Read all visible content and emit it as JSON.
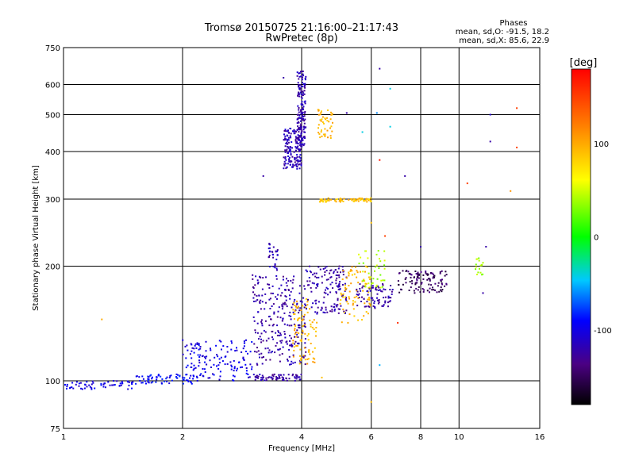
{
  "chart_data": {
    "type": "scatter",
    "title": "Tromsø 20150725 21:16:00–21:17:43",
    "subtitle": "RwPretec (8p)",
    "xlabel": "Frequency [MHz]",
    "ylabel": "Stationary phase Virtual Height [km]",
    "x_scale": "log",
    "y_scale": "log",
    "xlim": [
      1,
      16
    ],
    "ylim": [
      75,
      750
    ],
    "x_ticks": [
      1,
      2,
      4,
      6,
      8,
      10,
      16
    ],
    "x_grid": [
      1,
      2,
      4,
      6,
      8,
      10,
      16
    ],
    "y_ticks": [
      75,
      100,
      200,
      300,
      400,
      500,
      600,
      750
    ],
    "y_grid": [
      100,
      200,
      300,
      400,
      500,
      600
    ],
    "grid": true,
    "legend": {
      "title": "Phases",
      "line1": "mean, sd,O:  -91.5, 18.2",
      "line2": "mean, sd,X:  85.6, 22.9",
      "placement": "top-right"
    },
    "colorbar": {
      "label": "[deg]",
      "range": [
        -180,
        180
      ],
      "ticks": [
        100,
        0,
        -100
      ],
      "placement": "right"
    },
    "clusters": [
      {
        "x": [
          1.0,
          1.5
        ],
        "y": [
          95,
          100
        ],
        "phase": -100,
        "n": 60
      },
      {
        "x": [
          1.5,
          2.2
        ],
        "y": [
          98,
          104
        ],
        "phase": -92,
        "n": 70
      },
      {
        "x": [
          2.0,
          3.0
        ],
        "y": [
          100,
          128
        ],
        "phase": -100,
        "n": 140
      },
      {
        "x": [
          3.0,
          4.0
        ],
        "y": [
          100,
          104
        ],
        "phase": -125,
        "n": 70
      },
      {
        "x": [
          3.0,
          4.1
        ],
        "y": [
          110,
          190
        ],
        "phase": -125,
        "n": 260
      },
      {
        "x": [
          3.3,
          3.5
        ],
        "y": [
          195,
          230
        ],
        "phase": -120,
        "n": 30
      },
      {
        "x": [
          3.6,
          4.0
        ],
        "y": [
          360,
          460
        ],
        "phase": -120,
        "n": 160
      },
      {
        "x": [
          3.9,
          4.1
        ],
        "y": [
          410,
          650
        ],
        "phase": -122,
        "n": 160
      },
      {
        "x": [
          3.8,
          4.4
        ],
        "y": [
          110,
          165
        ],
        "phase": 95,
        "n": 90
      },
      {
        "x": [
          4.1,
          5.2
        ],
        "y": [
          150,
          200
        ],
        "phase": -125,
        "n": 140
      },
      {
        "x": [
          4.4,
          4.8
        ],
        "y": [
          430,
          520
        ],
        "phase": 95,
        "n": 45
      },
      {
        "x": [
          4.4,
          6.0
        ],
        "y": [
          295,
          302
        ],
        "phase": 90,
        "n": 70
      },
      {
        "x": [
          5.0,
          6.0
        ],
        "y": [
          140,
          200
        ],
        "phase": 95,
        "n": 80
      },
      {
        "x": [
          5.5,
          6.8
        ],
        "y": [
          155,
          180
        ],
        "phase": -125,
        "n": 80
      },
      {
        "x": [
          5.5,
          6.5
        ],
        "y": [
          175,
          220
        ],
        "phase": 40,
        "n": 40
      },
      {
        "x": [
          7.0,
          9.3
        ],
        "y": [
          170,
          195
        ],
        "phase": -150,
        "n": 110
      },
      {
        "x": [
          11.0,
          11.5
        ],
        "y": [
          190,
          210
        ],
        "phase": 40,
        "n": 18
      }
    ],
    "points": [
      {
        "x": 3.6,
        "y": 625,
        "phase": -125
      },
      {
        "x": 6.3,
        "y": 660,
        "phase": -125
      },
      {
        "x": 6.7,
        "y": 585,
        "phase": -40
      },
      {
        "x": 6.7,
        "y": 465,
        "phase": -40
      },
      {
        "x": 6.2,
        "y": 505,
        "phase": -60
      },
      {
        "x": 5.7,
        "y": 450,
        "phase": -40
      },
      {
        "x": 5.2,
        "y": 505,
        "phase": -125
      },
      {
        "x": 6.3,
        "y": 380,
        "phase": 170
      },
      {
        "x": 7.3,
        "y": 345,
        "phase": -125
      },
      {
        "x": 10.5,
        "y": 330,
        "phase": 150
      },
      {
        "x": 12.0,
        "y": 500,
        "phase": -110
      },
      {
        "x": 12.0,
        "y": 425,
        "phase": -125
      },
      {
        "x": 14.0,
        "y": 520,
        "phase": 150
      },
      {
        "x": 14.0,
        "y": 410,
        "phase": 150
      },
      {
        "x": 13.5,
        "y": 315,
        "phase": 110
      },
      {
        "x": 1.25,
        "y": 145,
        "phase": 100
      },
      {
        "x": 3.2,
        "y": 345,
        "phase": -125
      },
      {
        "x": 4.5,
        "y": 102,
        "phase": 90
      },
      {
        "x": 6.0,
        "y": 88,
        "phase": 90
      },
      {
        "x": 6.3,
        "y": 110,
        "phase": -50
      },
      {
        "x": 7.0,
        "y": 142,
        "phase": 160
      },
      {
        "x": 11.5,
        "y": 170,
        "phase": -125
      },
      {
        "x": 11.7,
        "y": 225,
        "phase": -125
      },
      {
        "x": 8.0,
        "y": 225,
        "phase": -125
      },
      {
        "x": 6.0,
        "y": 260,
        "phase": 90
      },
      {
        "x": 6.5,
        "y": 240,
        "phase": 150
      }
    ]
  }
}
